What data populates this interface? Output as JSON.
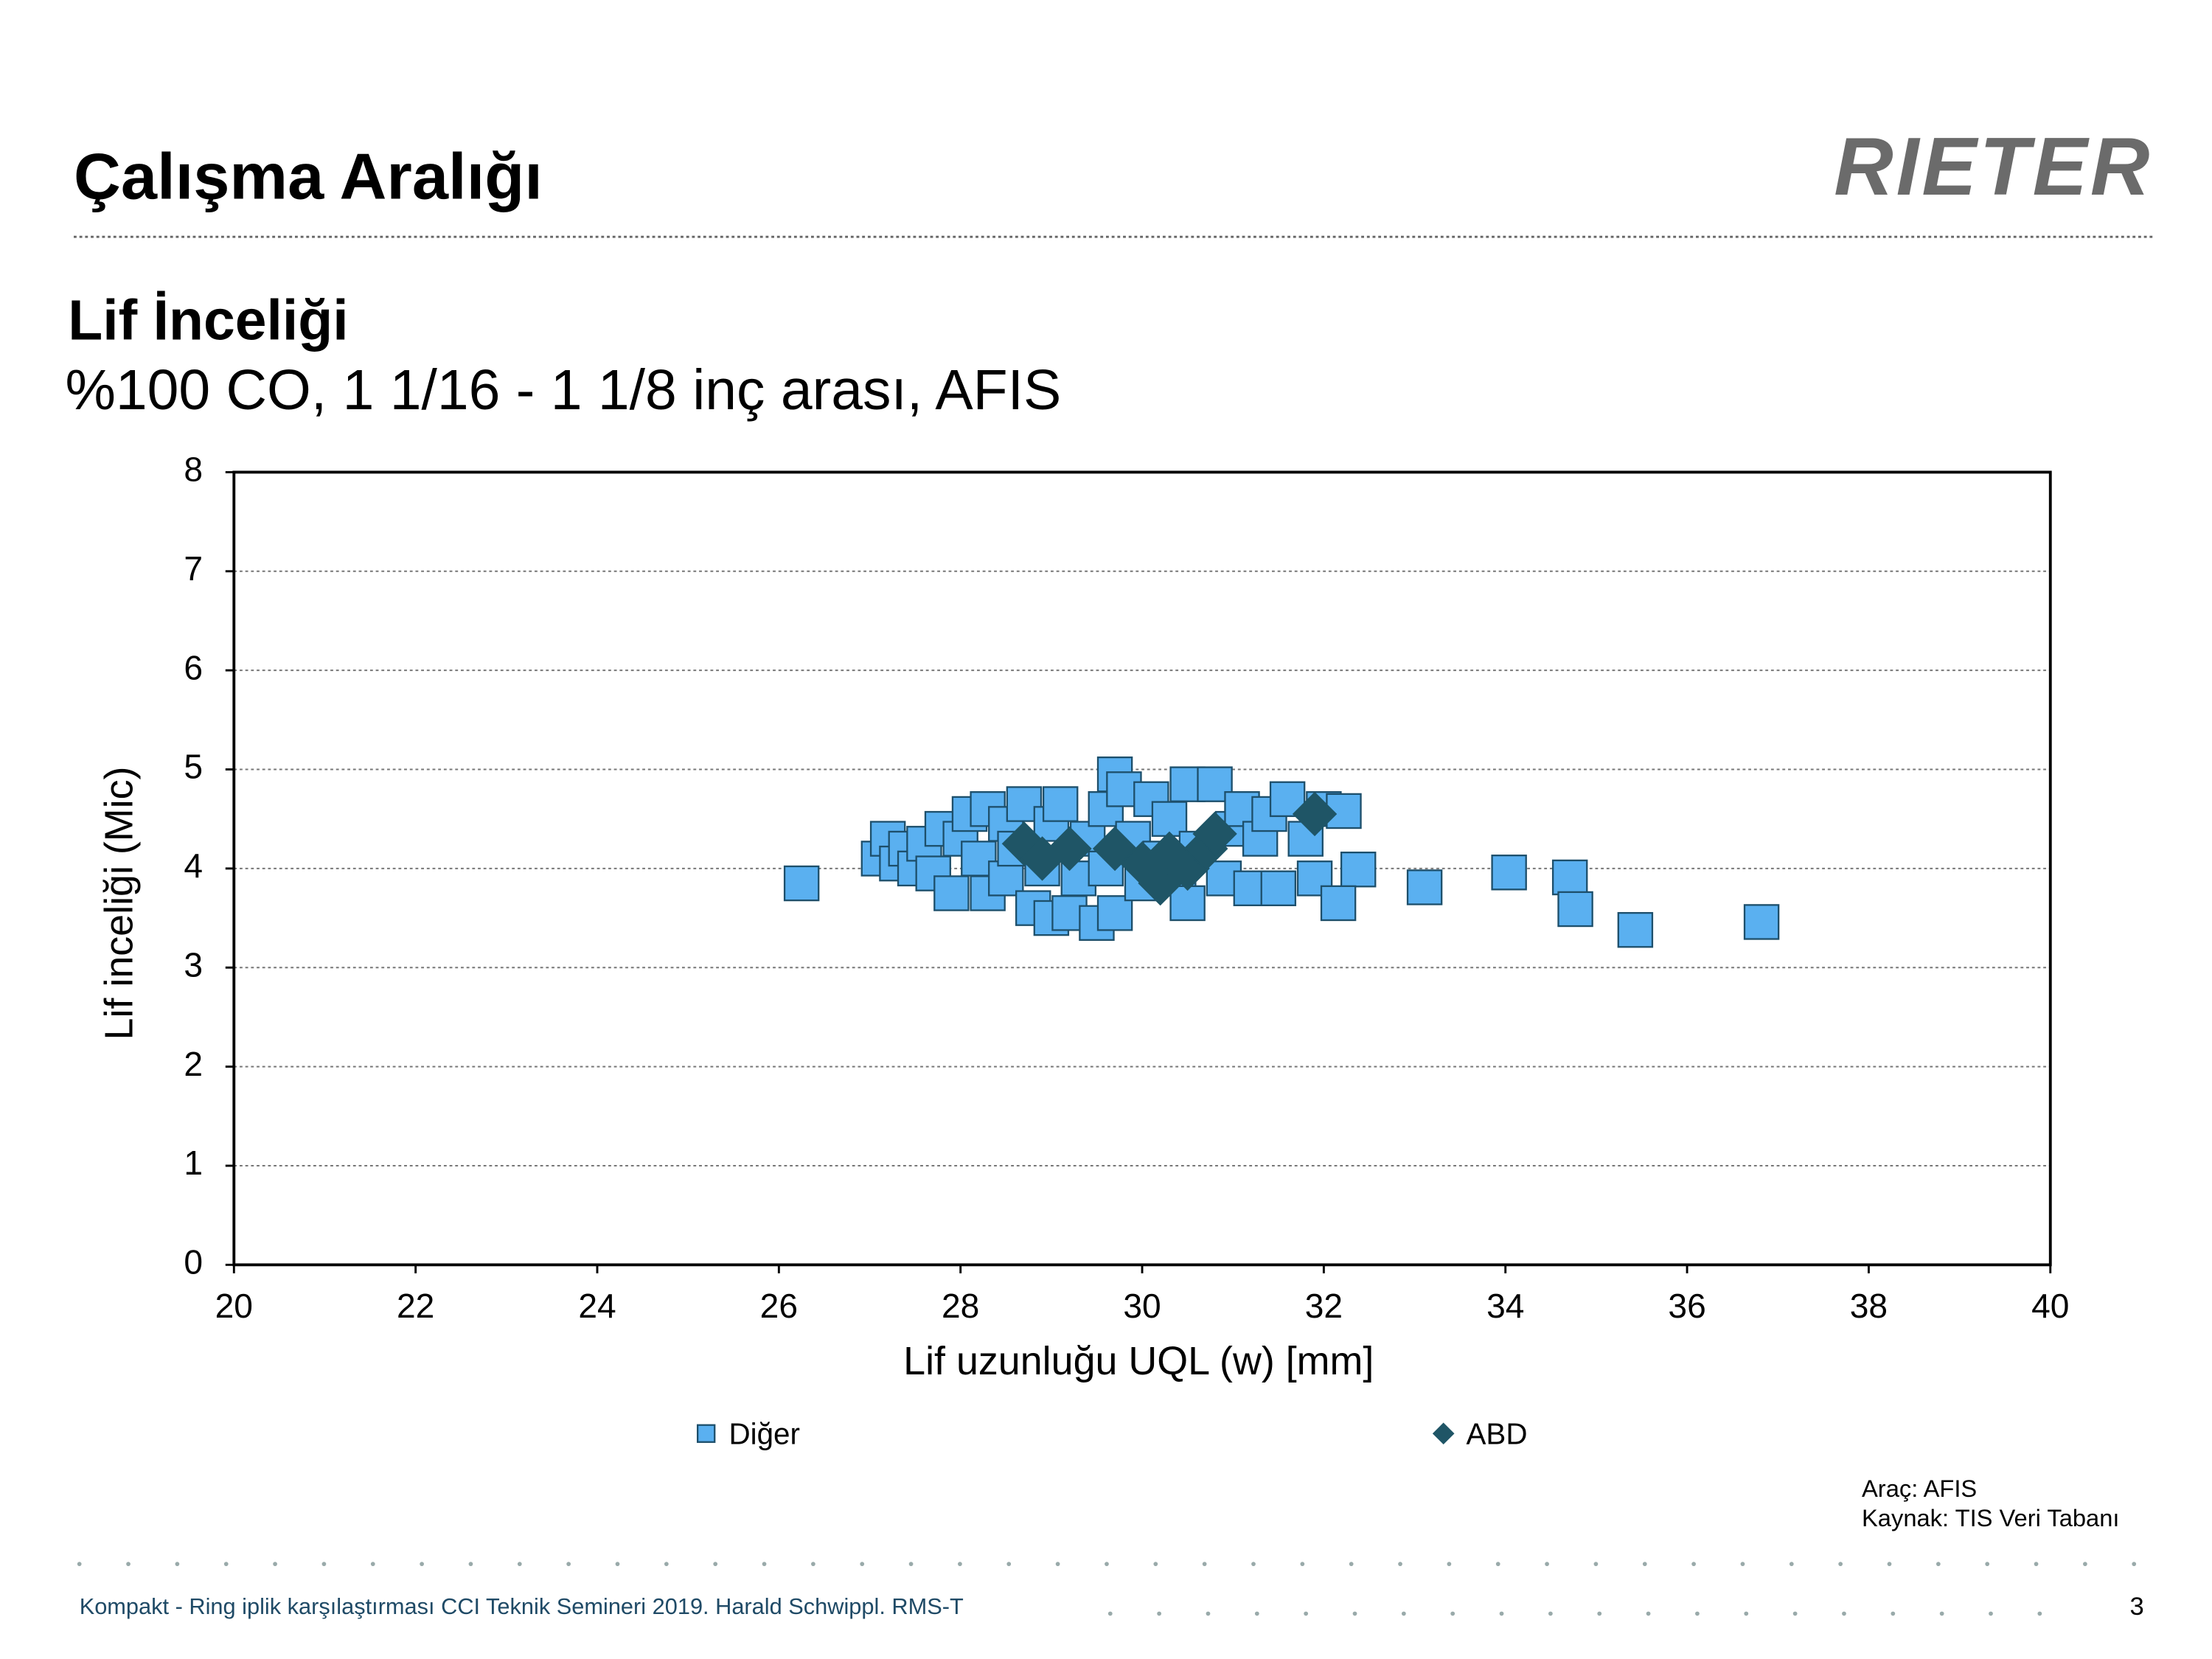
{
  "slide": {
    "heading": "Çalışma Aralığı",
    "logo": "RIETER",
    "notes": [
      "Araç: AFIS",
      "Kaynak: TIS Veri Tabanı"
    ],
    "footer": "Kompakt - Ring iplik karşılaştırması CCI Teknik Semineri 2019. Harald Schwippl. RMS-T",
    "page_number": "3"
  },
  "chart_data": {
    "type": "scatter",
    "title": "Lif İnceliği",
    "subtitle": "%100 CO, 1 1/16 - 1 1/8 inç arası, AFIS",
    "x_label": "Lif uzunluğu UQL (w) [mm]",
    "y_label": "Lif inceliği (Mic)",
    "xlim": [
      20,
      40
    ],
    "xticks": [
      20,
      22,
      24,
      26,
      28,
      30,
      32,
      34,
      36,
      38,
      40
    ],
    "ylim": [
      0,
      8
    ],
    "yticks": [
      0,
      1,
      2,
      3,
      4,
      5,
      6,
      7,
      8
    ],
    "grid": true,
    "series": [
      {
        "name": "Diğer",
        "color": "#5ab0f0",
        "marker": "square",
        "x": [
          27.1,
          27.2,
          27.3,
          27.4,
          27.5,
          27.6,
          27.7,
          27.8,
          27.9,
          28.0,
          28.1,
          28.2,
          28.3,
          28.3,
          28.5,
          28.5,
          28.6,
          28.7,
          28.8,
          28.9,
          29.0,
          29.0,
          29.1,
          29.2,
          29.3,
          29.4,
          29.5,
          29.6,
          29.6,
          29.7,
          29.7,
          29.8,
          29.9,
          30.0,
          30.1,
          30.2,
          30.3,
          30.4,
          30.5,
          30.5,
          30.6,
          30.8,
          30.9,
          31.0,
          31.1,
          31.2,
          31.3,
          31.4,
          31.5,
          31.6,
          31.8,
          31.9,
          32.0,
          26.25,
          33.11,
          34.04,
          34.71,
          34.77,
          35.43,
          36.82,
          32.38,
          32.16,
          32.22
        ],
        "y": [
          4.1,
          4.3,
          4.05,
          4.2,
          4.0,
          4.25,
          3.95,
          4.4,
          3.75,
          4.3,
          4.55,
          4.1,
          3.75,
          4.6,
          4.45,
          3.9,
          4.2,
          4.65,
          3.6,
          4.0,
          3.5,
          4.45,
          4.65,
          3.55,
          3.9,
          4.3,
          3.45,
          4.0,
          4.6,
          3.55,
          4.95,
          4.8,
          4.3,
          3.85,
          4.7,
          4.1,
          4.5,
          3.9,
          4.85,
          3.65,
          4.2,
          4.85,
          3.9,
          4.4,
          4.6,
          3.8,
          4.3,
          4.55,
          3.8,
          4.7,
          4.3,
          3.9,
          4.6,
          3.85,
          3.81,
          3.96,
          3.91,
          3.59,
          3.38,
          3.46,
          3.99,
          3.65,
          4.58
        ]
      },
      {
        "name": "ABD",
        "color": "#1f5566",
        "marker": "diamond",
        "x": [
          28.7,
          28.9,
          29.2,
          29.7,
          30.0,
          30.2,
          30.3,
          30.5,
          30.7,
          30.8,
          31.9
        ],
        "y": [
          4.25,
          4.1,
          4.2,
          4.2,
          4.05,
          3.85,
          4.15,
          4.0,
          4.2,
          4.35,
          4.55
        ]
      }
    ]
  }
}
